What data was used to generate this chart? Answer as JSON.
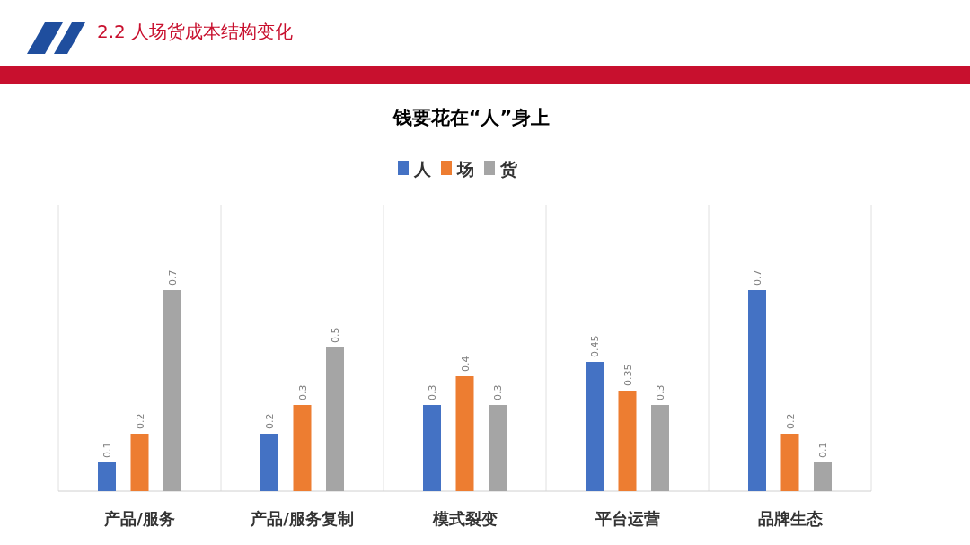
{
  "chart_data": {
    "type": "bar",
    "title": "钱要花在“人”身上",
    "annotations": [
      "2.2 人场货成本结构变化"
    ],
    "categories": [
      "产品/服务",
      "产品/服务复制",
      "模式裂变",
      "平台运营",
      "品牌生态"
    ],
    "series": [
      {
        "name": "人",
        "color": "#4472c4",
        "values": [
          0.1,
          0.2,
          0.3,
          0.45,
          0.7
        ]
      },
      {
        "name": "场",
        "color": "#ed7d31",
        "values": [
          0.2,
          0.3,
          0.4,
          0.35,
          0.2
        ]
      },
      {
        "name": "货",
        "color": "#a5a5a5",
        "values": [
          0.7,
          0.5,
          0.3,
          0.3,
          0.1
        ]
      }
    ],
    "data_labels": true,
    "grid": "x",
    "legend": "top"
  }
}
